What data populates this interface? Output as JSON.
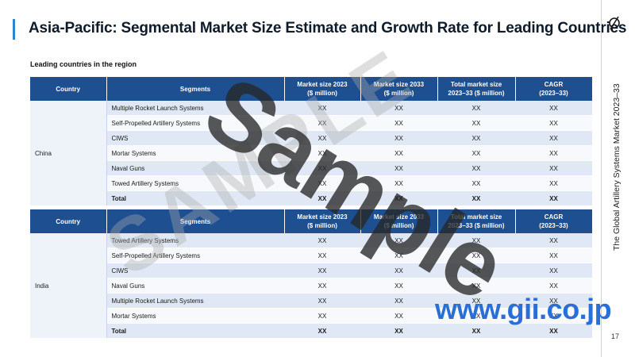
{
  "title": "Asia-Pacific: Segmental Market Size Estimate and Growth Rate for Leading Countries",
  "subtitle": "Leading countries in the region",
  "side_text": "The Global Artillery Systems Market 2023–33",
  "page_number": "17",
  "headers": {
    "country": "Country",
    "segments": "Segments",
    "size2023": [
      "Market size 2023",
      "($ million)"
    ],
    "size2033": [
      "Market size 2033",
      "($ million)"
    ],
    "total": [
      "Total market size",
      "2023–33 ($ million)"
    ],
    "cagr": [
      "CAGR",
      "(2023–33)"
    ]
  },
  "tables": [
    {
      "country": "China",
      "rows": [
        {
          "segment": "Multiple Rocket Launch Systems",
          "v2023": "XX",
          "v2033": "XX",
          "total": "XX",
          "cagr": "XX"
        },
        {
          "segment": "Self-Propelled Artillery Systems",
          "v2023": "XX",
          "v2033": "XX",
          "total": "XX",
          "cagr": "XX"
        },
        {
          "segment": "CIWS",
          "v2023": "XX",
          "v2033": "XX",
          "total": "XX",
          "cagr": "XX"
        },
        {
          "segment": "Mortar Systems",
          "v2023": "XX",
          "v2033": "XX",
          "total": "XX",
          "cagr": "XX"
        },
        {
          "segment": "Naval Guns",
          "v2023": "XX",
          "v2033": "XX",
          "total": "XX",
          "cagr": "XX"
        },
        {
          "segment": "Towed Artillery Systems",
          "v2023": "XX",
          "v2033": "XX",
          "total": "XX",
          "cagr": "XX"
        },
        {
          "segment": "Total",
          "v2023": "XX",
          "v2033": "XX",
          "total": "XX",
          "cagr": "XX"
        }
      ]
    },
    {
      "country": "India",
      "rows": [
        {
          "segment": "Towed Artillery Systems",
          "v2023": "XX",
          "v2033": "XX",
          "total": "XX",
          "cagr": "XX"
        },
        {
          "segment": "Self-Propelled Artillery Systems",
          "v2023": "XX",
          "v2033": "XX",
          "total": "XX",
          "cagr": "XX"
        },
        {
          "segment": "CIWS",
          "v2023": "XX",
          "v2033": "XX",
          "total": "XX",
          "cagr": "XX"
        },
        {
          "segment": "Naval Guns",
          "v2023": "XX",
          "v2033": "XX",
          "total": "XX",
          "cagr": "XX"
        },
        {
          "segment": "Multiple Rocket Launch Systems",
          "v2023": "XX",
          "v2033": "XX",
          "total": "XX",
          "cagr": "XX"
        },
        {
          "segment": "Mortar Systems",
          "v2023": "XX",
          "v2033": "XX",
          "total": "XX",
          "cagr": "XX"
        },
        {
          "segment": "Total",
          "v2023": "XX",
          "v2033": "XX",
          "total": "XX",
          "cagr": "XX"
        }
      ]
    }
  ],
  "watermarks": {
    "sample": "Sample",
    "sample_faint": "SAMPLE",
    "site": "www.gii.co.jp"
  },
  "colors": {
    "header_bg": "#1d4f91",
    "row_alt": "#dfe8f4",
    "accent": "#2e86d1",
    "site_watermark": "#2a6fd6"
  },
  "icons": {
    "logo": "circle-slash-logo-icon"
  }
}
